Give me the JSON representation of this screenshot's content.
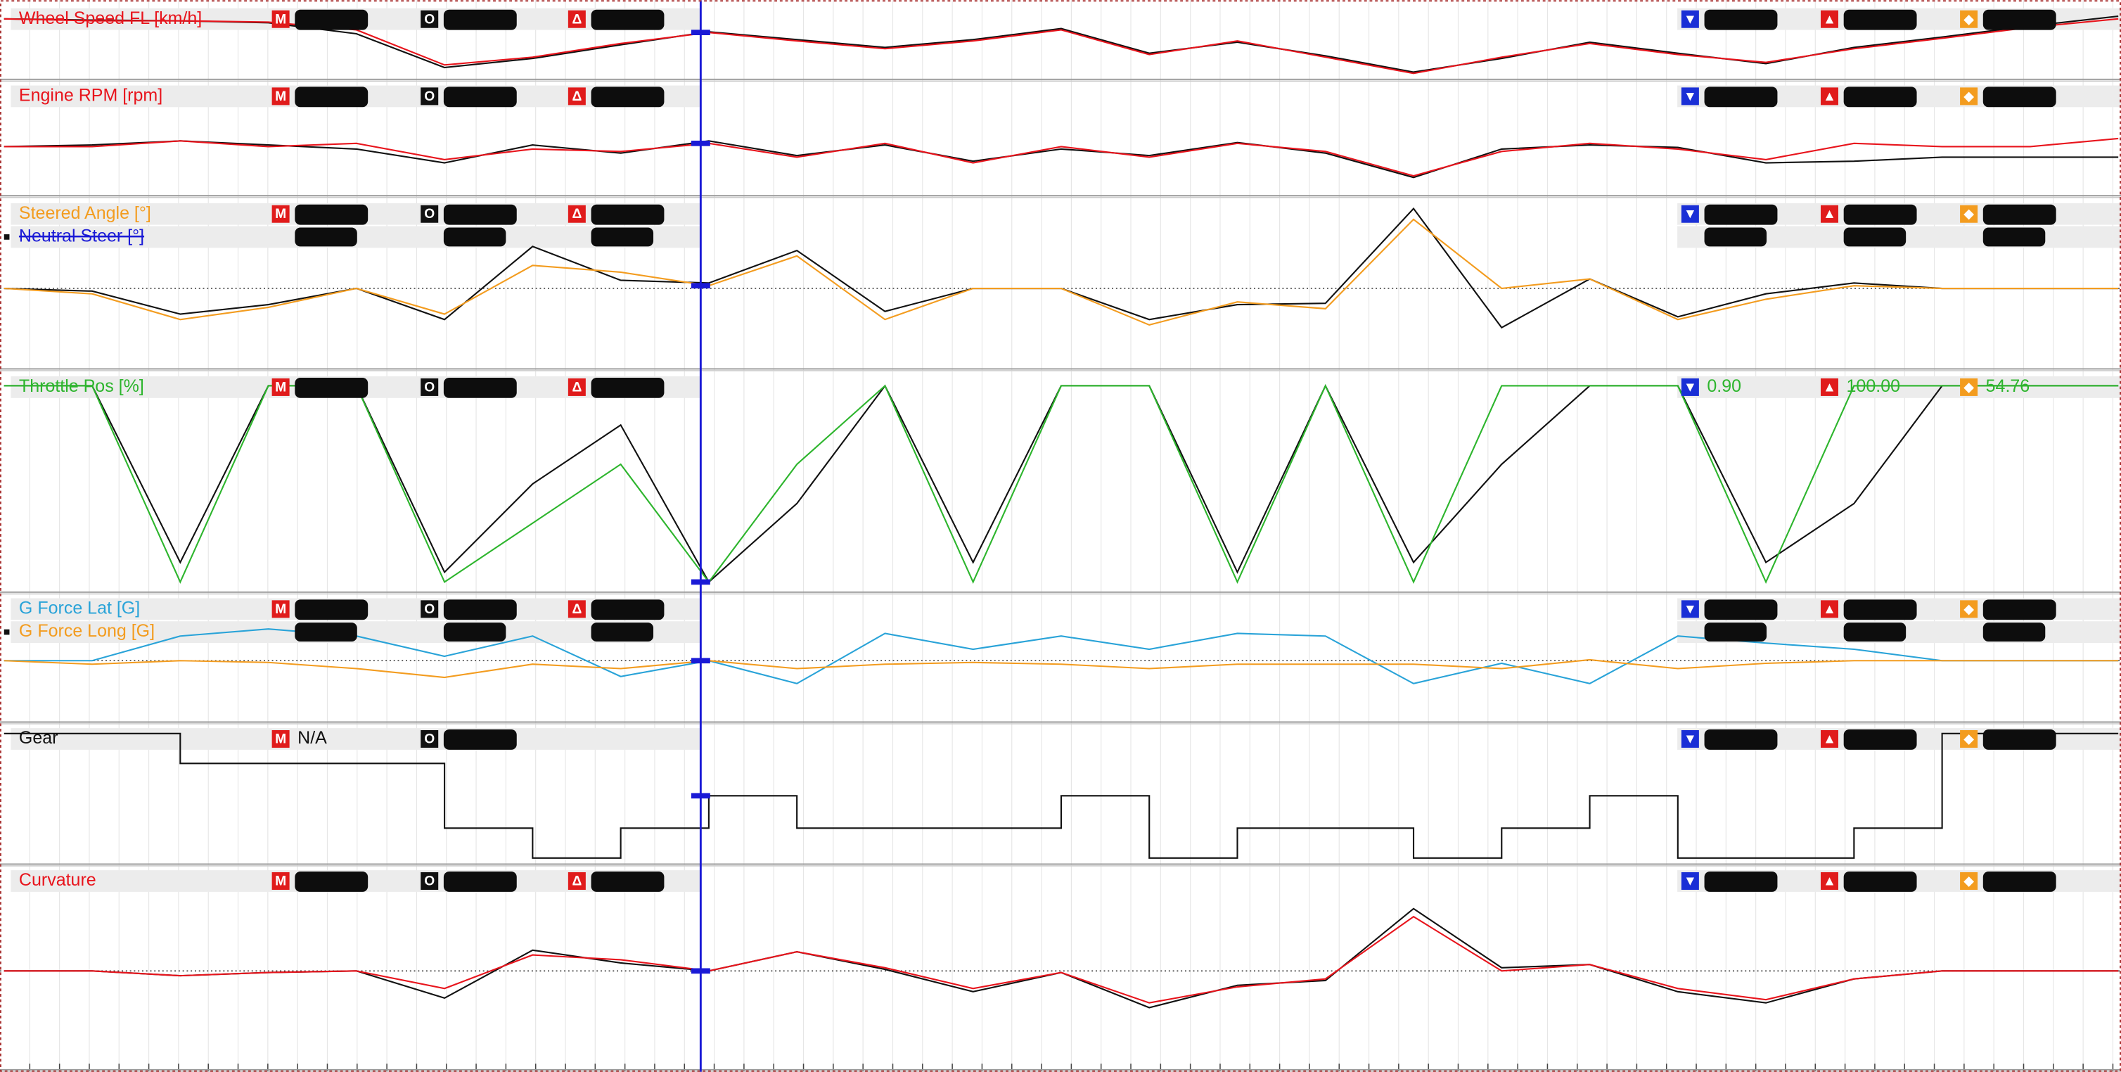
{
  "icons": {
    "m": "M",
    "o": "O",
    "delta": "Δ",
    "min": "▼",
    "max": "▲",
    "avg": "◆"
  },
  "chart_data": [
    {
      "type": "line",
      "ylim": [
        0,
        100
      ],
      "series": [
        {
          "name": "Wheel Speed FL [km/h]",
          "color": "#e8141c",
          "values": [
            88,
            85,
            85,
            83,
            71,
            17,
            29,
            50,
            67,
            54,
            42,
            54,
            71,
            33,
            54,
            29,
            4,
            29,
            50,
            33,
            21,
            42,
            58,
            75,
            88
          ]
        },
        {
          "color": "#111111",
          "values": [
            88,
            86,
            85,
            82,
            65,
            13,
            27,
            48,
            68,
            56,
            44,
            56,
            73,
            35,
            52,
            31,
            6,
            27,
            52,
            35,
            19,
            44,
            60,
            77,
            92
          ]
        }
      ]
    },
    {
      "type": "line",
      "ylim": [
        0,
        100
      ],
      "series": [
        {
          "name": "Engine RPM [rpm]",
          "color": "#e8141c",
          "values": [
            53,
            53,
            60,
            53,
            57,
            37,
            50,
            47,
            57,
            40,
            57,
            33,
            53,
            40,
            57,
            47,
            17,
            47,
            57,
            50,
            37,
            57,
            53,
            53,
            63
          ]
        },
        {
          "color": "#111111",
          "values": [
            53,
            55,
            60,
            55,
            50,
            33,
            55,
            45,
            60,
            42,
            55,
            35,
            50,
            42,
            58,
            45,
            15,
            50,
            55,
            52,
            33,
            35,
            40,
            40,
            40
          ]
        }
      ]
    },
    {
      "type": "line",
      "ylim": [
        0,
        100
      ],
      "zero": 39,
      "series": [
        {
          "name": "Steered Angle [°]",
          "color": "#f39c1f",
          "values": [
            39,
            35,
            16,
            25,
            39,
            20,
            56,
            51,
            41,
            63,
            16,
            39,
            39,
            12,
            29,
            24,
            90,
            39,
            46,
            16,
            31,
            41,
            39,
            39,
            39
          ]
        },
        {
          "name": "Neutral Steer [°]",
          "color": "#1a1ad6",
          "strike": true
        },
        {
          "color": "#111111",
          "values": [
            39,
            37,
            20,
            27,
            39,
            16,
            70,
            45,
            43,
            67,
            22,
            39,
            39,
            16,
            27,
            28,
            98,
            10,
            46,
            18,
            35,
            43,
            39,
            39,
            39
          ]
        }
      ]
    },
    {
      "type": "line",
      "ylim": [
        0,
        100
      ],
      "series": [
        {
          "name": "Throttle Pos [%]",
          "color": "#2db52d",
          "values": [
            100,
            100,
            0,
            100,
            100,
            0,
            30,
            60,
            0,
            60,
            100,
            0,
            100,
            100,
            0,
            100,
            0,
            100,
            100,
            100,
            0,
            100,
            100,
            100,
            100
          ],
          "stats": {
            "min": {
              "value": 0.9,
              "label": "0.90"
            },
            "max": {
              "value": 100,
              "label": "100.00"
            },
            "avg": 54.76
          }
        },
        {
          "color": "#111111",
          "values": [
            100,
            100,
            10,
            100,
            100,
            5,
            50,
            80,
            0,
            40,
            100,
            10,
            100,
            100,
            5,
            100,
            10,
            60,
            100,
            100,
            10,
            40,
            100,
            100,
            100
          ]
        }
      ]
    },
    {
      "type": "line",
      "ylim": [
        0,
        100
      ],
      "zero": 49,
      "series": [
        {
          "name": "G Force Lat [G]",
          "color": "#29a3d8",
          "values": [
            49,
            49,
            77,
            85,
            77,
            54,
            77,
            31,
            49,
            23,
            80,
            62,
            77,
            62,
            80,
            77,
            23,
            46,
            23,
            77,
            69,
            62,
            49,
            49,
            49
          ]
        },
        {
          "name": "G Force Long [G]",
          "color": "#f39c1f",
          "values": [
            49,
            45,
            49,
            47,
            40,
            30,
            45,
            40,
            49,
            40,
            45,
            47,
            45,
            40,
            45,
            45,
            45,
            40,
            50,
            40,
            46,
            49,
            49,
            49,
            49
          ]
        }
      ]
    },
    {
      "type": "step",
      "ylim": [
        0,
        100
      ],
      "series": [
        {
          "name": "Gear",
          "color": "#111111",
          "values": [
            100,
            100,
            76,
            76,
            76,
            24,
            0,
            24,
            50,
            24,
            24,
            24,
            50,
            0,
            24,
            24,
            0,
            24,
            50,
            0,
            0,
            24,
            100,
            100,
            100
          ],
          "stats": {
            "m": "N/A"
          }
        }
      ]
    },
    {
      "type": "line",
      "ylim": [
        0,
        100
      ],
      "zero": 53,
      "series": [
        {
          "name": "Curvature",
          "color": "#e8141c",
          "values": [
            53,
            53,
            50,
            52,
            53,
            42,
            63,
            60,
            53,
            65,
            55,
            42,
            52,
            33,
            43,
            48,
            87,
            53,
            57,
            42,
            35,
            48,
            53,
            53,
            53
          ]
        },
        {
          "color": "#111111",
          "values": [
            53,
            53,
            50,
            52,
            53,
            36,
            66,
            58,
            53,
            65,
            54,
            40,
            52,
            30,
            44,
            47,
            92,
            55,
            57,
            40,
            33,
            48,
            53,
            53,
            53
          ]
        }
      ]
    }
  ]
}
